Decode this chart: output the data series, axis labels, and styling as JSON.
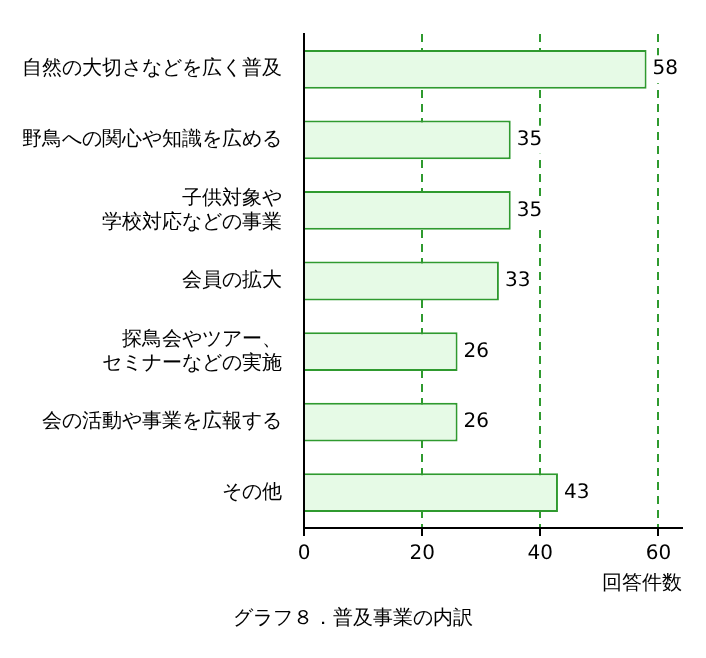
{
  "chart_data": {
    "type": "bar",
    "orientation": "horizontal",
    "title": "グラフ８．普及事業の内訳",
    "xlabel": "回答件数",
    "categories": [
      "自然の大切さなどを広く普及",
      "野鳥への関心や知識を広める",
      "子供対象や学校対応などの事業",
      "会員の拡大",
      "探鳥会やツアー、セミナーなどの実施",
      "会の活動や事業を広報する",
      "その他"
    ],
    "values": [
      58,
      35,
      35,
      33,
      26,
      26,
      43
    ],
    "color": "#e6fae6",
    "xlim": [
      0,
      64
    ],
    "xticks": [
      0,
      20,
      40,
      60
    ],
    "grid": "x",
    "data_labels": true
  }
}
